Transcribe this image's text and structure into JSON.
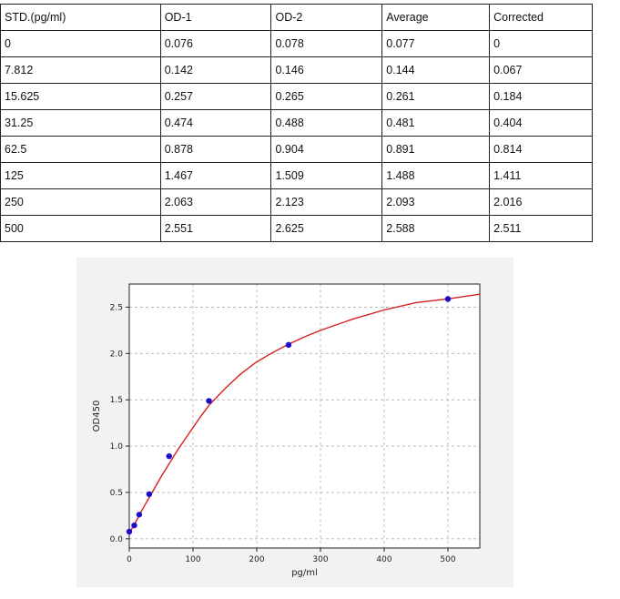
{
  "table": {
    "headers": [
      "STD.(pg/ml)",
      "OD-1",
      "OD-2",
      "Average",
      "Corrected"
    ],
    "rows": [
      [
        "0",
        "0.076",
        "0.078",
        "0.077",
        "0"
      ],
      [
        "7.812",
        "0.142",
        "0.146",
        "0.144",
        "0.067"
      ],
      [
        "15.625",
        "0.257",
        "0.265",
        "0.261",
        "0.184"
      ],
      [
        "31.25",
        "0.474",
        "0.488",
        "0.481",
        "0.404"
      ],
      [
        "62.5",
        "0.878",
        "0.904",
        "0.891",
        "0.814"
      ],
      [
        "125",
        "1.467",
        "1.509",
        "1.488",
        "1.411"
      ],
      [
        "250",
        "2.063",
        "2.123",
        "2.093",
        "2.016"
      ],
      [
        "500",
        "2.551",
        "2.625",
        "2.588",
        "2.511"
      ]
    ]
  },
  "chart_data": {
    "type": "scatter",
    "title": "",
    "xlabel": "pg/ml",
    "ylabel": "OD450",
    "xlim": [
      0,
      550
    ],
    "ylim": [
      -0.1,
      2.75
    ],
    "x_ticks": [
      0,
      100,
      200,
      300,
      400,
      500
    ],
    "x_tick_labels": [
      "0",
      "100",
      "200",
      "300",
      "400",
      "500"
    ],
    "y_ticks": [
      0.0,
      0.5,
      1.0,
      1.5,
      2.0,
      2.5
    ],
    "y_tick_labels": [
      "0.0",
      "0.5",
      "1.0",
      "1.5",
      "2.0",
      "2.5"
    ],
    "grid": true,
    "series": [
      {
        "type": "scatter",
        "color": "#1a0dcc",
        "x": [
          0,
          7.812,
          15.625,
          31.25,
          62.5,
          125,
          250,
          500
        ],
        "y": [
          0.077,
          0.144,
          0.261,
          0.481,
          0.891,
          1.488,
          2.093,
          2.588
        ]
      },
      {
        "type": "line",
        "color": "#d62020",
        "x": [
          0,
          5,
          10,
          15,
          20,
          25,
          30,
          40,
          50,
          62.5,
          75,
          90,
          110,
          125,
          150,
          175,
          200,
          225,
          250,
          275,
          300,
          350,
          400,
          450,
          500,
          550
        ],
        "y": [
          0.06,
          0.12,
          0.18,
          0.245,
          0.31,
          0.37,
          0.43,
          0.55,
          0.67,
          0.81,
          0.95,
          1.1,
          1.3,
          1.44,
          1.62,
          1.78,
          1.91,
          2.01,
          2.1,
          2.18,
          2.25,
          2.37,
          2.47,
          2.55,
          2.59,
          2.64
        ]
      }
    ]
  }
}
